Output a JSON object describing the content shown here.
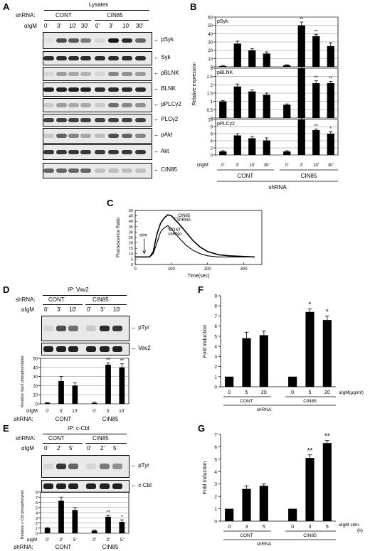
{
  "panels": {
    "A": "A",
    "B": "B",
    "C": "C",
    "D": "D",
    "E": "E",
    "F": "F",
    "G": "G"
  },
  "panelA": {
    "lysates": "Lysates",
    "shrna_label": "shRNA:",
    "cont": "CONT",
    "cin85": "CIN85",
    "aigm": "αIgM",
    "times": [
      "0'",
      "3'",
      "10'",
      "30'",
      "0'",
      "3'",
      "10'",
      "30'"
    ],
    "rows": [
      "pSyk",
      "Syk",
      "pBLNK",
      "BLNK",
      "pPLCγ2",
      "PLCγ2",
      "pAkt",
      "Akt",
      "CIN85"
    ]
  },
  "panelD": {
    "ip": "IP: Vav2",
    "shrna_label": "shRNA:",
    "cont": "CONT",
    "cin85": "CIN85",
    "aigm": "αIgM",
    "times": [
      "0'",
      "3'",
      "10'",
      "0'",
      "3'",
      "10'"
    ],
    "rows": [
      "pTyr",
      "Vav2"
    ]
  },
  "panelE": {
    "ip": "IP: c-Cbl",
    "shrna_label": "shRNA:",
    "cont": "CONT",
    "cin85": "CIN85",
    "aigm": "αIgM",
    "times": [
      "0'",
      "2'",
      "5'",
      "0'",
      "2'",
      "5'"
    ],
    "rows": [
      "pTyr",
      "c-Cbl"
    ]
  },
  "chart_data": [
    {
      "id": "B-pSyk",
      "type": "bar",
      "title": "pSyk",
      "ylabel": "Relative expression",
      "ylim": [
        0,
        60
      ],
      "yticks": [
        0,
        10,
        20,
        30,
        40,
        50,
        60
      ],
      "categories": [
        "0'",
        "3'",
        "10'",
        "30'",
        "0'",
        "3'",
        "10'",
        "30'"
      ],
      "values": [
        1,
        28,
        20,
        16,
        2,
        50,
        37,
        25
      ],
      "errors": [
        0.5,
        3,
        2,
        2,
        0.5,
        4,
        2,
        4
      ],
      "annotations": [
        "",
        "",
        "",
        "",
        "",
        "**",
        "**",
        ""
      ]
    },
    {
      "id": "B-pBLNK",
      "type": "bar",
      "title": "pBLNK",
      "ylim": [
        0,
        3
      ],
      "yticks": [
        0,
        0.5,
        1,
        1.5,
        2,
        2.5,
        3
      ],
      "categories": [
        "0'",
        "3'",
        "10'",
        "30'",
        "0'",
        "3'",
        "10'",
        "30'"
      ],
      "values": [
        1,
        1.9,
        1.6,
        1.4,
        0.8,
        3.0,
        2.1,
        2.1
      ],
      "errors": [
        0.05,
        0.15,
        0.1,
        0.1,
        0.05,
        0.2,
        0.15,
        0.1
      ],
      "annotations": [
        "",
        "",
        "",
        "",
        "",
        "**",
        "**",
        "**"
      ]
    },
    {
      "id": "B-pPLCg2",
      "type": "bar",
      "title": "pPLCγ2",
      "ylim": [
        0,
        10
      ],
      "yticks": [
        0,
        2,
        4,
        6,
        8,
        10
      ],
      "categories": [
        "0'",
        "3'",
        "10'",
        "30'",
        "0'",
        "3'",
        "10'",
        "30'"
      ],
      "values": [
        1,
        5.5,
        4.7,
        4.1,
        1,
        10,
        7,
        6
      ],
      "errors": [
        0.2,
        0.5,
        0.5,
        0.7,
        0.2,
        0.4,
        0.3,
        0.6
      ],
      "annotations": [
        "",
        "",
        "",
        "",
        "",
        "**",
        "**",
        "*"
      ],
      "xlabel_prefix": "αIgM",
      "group_labels": [
        "CONT",
        "CIN85"
      ],
      "xlabel": "shRNA"
    },
    {
      "id": "C",
      "type": "line",
      "ylabel": "Fluorescence Ratio",
      "xlabel": "Time(sec)",
      "xlim": [
        0,
        350
      ],
      "ylim": [
        0,
        50
      ],
      "xticks": [
        0,
        100,
        200,
        300
      ],
      "yticks": [
        0,
        5,
        10,
        15,
        20,
        25,
        30,
        35,
        40,
        45,
        50
      ],
      "series": [
        {
          "name": "CONT shRNA",
          "x": [
            0,
            40,
            50,
            60,
            70,
            80,
            90,
            100,
            120,
            140,
            160,
            180,
            200,
            230,
            260,
            330
          ],
          "y": [
            7,
            7,
            10,
            20,
            30,
            34,
            36,
            33,
            25,
            18,
            13,
            10,
            8,
            7,
            7,
            7
          ]
        },
        {
          "name": "CIN85 shRNA",
          "x": [
            0,
            40,
            50,
            60,
            70,
            80,
            90,
            100,
            120,
            140,
            160,
            180,
            200,
            230,
            260,
            330
          ],
          "y": [
            7,
            7,
            12,
            28,
            38,
            43,
            46,
            45,
            38,
            30,
            22,
            16,
            12,
            9,
            8,
            7
          ]
        }
      ],
      "annotations": [
        "stim"
      ],
      "series_labels": [
        [
          "CONT",
          "shRNA"
        ],
        [
          "CIN85",
          "shRNA"
        ]
      ]
    },
    {
      "id": "D-bar",
      "type": "bar",
      "ylabel": "Relative Vav2 phosphorylation",
      "ylim": [
        0,
        50
      ],
      "yticks": [
        0,
        10,
        20,
        30,
        40,
        50
      ],
      "categories": [
        "0'",
        "3'",
        "10'",
        "0'",
        "3'",
        "10'"
      ],
      "values": [
        1,
        25,
        20,
        1,
        43,
        40
      ],
      "errors": [
        0.5,
        5,
        3,
        1,
        2,
        4
      ],
      "annotations": [
        "",
        "",
        "",
        "",
        "**",
        "**"
      ]
    },
    {
      "id": "E-bar",
      "type": "bar",
      "ylabel": "Relative c-Cbl phosphorylation",
      "ylim": [
        0,
        8
      ],
      "yticks": [
        0,
        1,
        2,
        3,
        4,
        5,
        6,
        7,
        8
      ],
      "categories": [
        "0'",
        "2'",
        "5'",
        "0'",
        "2'",
        "5'"
      ],
      "values": [
        1,
        6.3,
        4.5,
        0.5,
        3.2,
        2.2
      ],
      "errors": [
        0.1,
        0.7,
        0.5,
        0.1,
        0.3,
        0.4
      ],
      "annotations": [
        "",
        "",
        "",
        "",
        "**",
        "*"
      ]
    },
    {
      "id": "F",
      "type": "bar",
      "ylabel": "Fold induction",
      "ylim": [
        0,
        9
      ],
      "yticks": [
        0,
        1,
        2,
        3,
        4,
        5,
        6,
        7,
        8,
        9
      ],
      "categories": [
        "0",
        "5",
        "20",
        "0",
        "5",
        "20"
      ],
      "values": [
        1,
        4.8,
        5.1,
        1,
        7.4,
        6.6
      ],
      "errors": [
        0,
        0.6,
        0.4,
        0,
        0.3,
        0.4
      ],
      "annotations": [
        "",
        "",
        "",
        "",
        "*",
        "*"
      ],
      "xlabel_suffix": "αIgM(μg/ml)",
      "group_labels": [
        "CONT",
        "CIN85"
      ],
      "xlabel": "shRNA"
    },
    {
      "id": "G",
      "type": "bar",
      "ylabel": "Fold induction",
      "ylim": [
        0,
        7
      ],
      "yticks": [
        0,
        1,
        2,
        3,
        4,
        5,
        6,
        7
      ],
      "categories": [
        "0",
        "3",
        "5",
        "0",
        "3",
        "5"
      ],
      "values": [
        1,
        2.6,
        2.85,
        1,
        5.1,
        6.3
      ],
      "errors": [
        0,
        0.25,
        0.15,
        0,
        0.25,
        0.2
      ],
      "annotations": [
        "",
        "",
        "",
        "",
        "**",
        "**"
      ],
      "xlabel_suffix": [
        "αIgM stim.",
        "(h)"
      ],
      "group_labels": [
        "CONT",
        "CIN85"
      ],
      "xlabel": "shRNA"
    }
  ]
}
